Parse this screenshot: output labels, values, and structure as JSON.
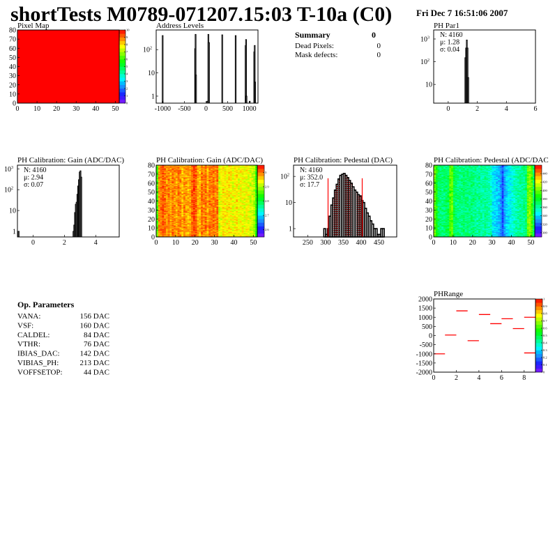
{
  "header": {
    "title": "shortTests M0789-071207.15:03 T-10a (C0)",
    "date": "Fri Dec  7 16:51:06 2007"
  },
  "summary": {
    "title": "Summary",
    "total": "0",
    "rows": [
      {
        "label": "Dead Pixels:",
        "value": "0"
      },
      {
        "label": "Mask defects:",
        "value": "0"
      }
    ]
  },
  "op_params": {
    "title": "Op. Parameters",
    "rows": [
      {
        "label": "VANA:",
        "value": "156 DAC"
      },
      {
        "label": "VSF:",
        "value": "160 DAC"
      },
      {
        "label": "CALDEL:",
        "value": "84 DAC"
      },
      {
        "label": "VTHR:",
        "value": "76 DAC"
      },
      {
        "label": "IBIAS_DAC:",
        "value": "142 DAC"
      },
      {
        "label": "VIBIAS_PH:",
        "value": "213 DAC"
      },
      {
        "label": "VOFFSETOP:",
        "value": "44 DAC"
      }
    ]
  },
  "colors": {
    "hist_line": "#000000",
    "fit": "#ff0000",
    "map_uniform": "#ff0000"
  },
  "chart_data": [
    {
      "id": "pixel-map",
      "type": "heatmap",
      "title": "Pixel Map",
      "xlim": [
        0,
        52
      ],
      "ylim": [
        0,
        80
      ],
      "zlim": [
        0,
        10
      ],
      "xticks": [
        "0",
        "10",
        "20",
        "30",
        "40",
        "50"
      ],
      "yticks": [
        "0",
        "10",
        "20",
        "30",
        "40",
        "50",
        "60",
        "70",
        "80"
      ],
      "zticks": [
        "0",
        "1",
        "2",
        "3",
        "4",
        "5",
        "6",
        "7",
        "8",
        "9",
        "10"
      ],
      "uniform_value": 10
    },
    {
      "id": "address-levels",
      "type": "bar",
      "title": "Address Levels",
      "xlim": [
        -1150,
        1200
      ],
      "ylim": [
        0.5,
        700
      ],
      "log_y": true,
      "xticks": [
        "-1000",
        "-500",
        "0",
        "500",
        "1000"
      ],
      "yticks": [
        "1",
        "10",
        "10^2"
      ],
      "bins": [
        [
          -1010,
          400
        ],
        [
          -260,
          110
        ],
        [
          -250,
          450
        ],
        [
          -240,
          8
        ],
        [
          20,
          0.6
        ],
        [
          45,
          450
        ],
        [
          60,
          200
        ],
        [
          365,
          430
        ],
        [
          675,
          400
        ],
        [
          905,
          150
        ],
        [
          915,
          270
        ],
        [
          925,
          1
        ],
        [
          1000,
          0.6
        ],
        [
          1105,
          80
        ],
        [
          1115,
          150
        ],
        [
          1125,
          4
        ]
      ]
    },
    {
      "id": "ph-par1",
      "type": "bar",
      "title": "PH Par1",
      "xlim": [
        -1,
        6
      ],
      "ylim": [
        1.5,
        2500
      ],
      "log_y": true,
      "xticks": [
        "0",
        "2",
        "4",
        "6"
      ],
      "yticks": [
        "10",
        "10^2",
        "10^3"
      ],
      "stats": [
        {
          "label": "N: 4160"
        },
        {
          "label": "μ: 1.28"
        },
        {
          "label": "σ: 0.04"
        }
      ],
      "bin_width": 0.05,
      "bins": [
        [
          1.15,
          150
        ],
        [
          1.2,
          400
        ],
        [
          1.25,
          900
        ],
        [
          1.3,
          400
        ],
        [
          1.35,
          20
        ]
      ]
    },
    {
      "id": "gain-hist",
      "type": "bar",
      "title": "PH Calibration: Gain (ADC/DAC)",
      "xlim": [
        -1,
        5.5
      ],
      "ylim": [
        0.54,
        1500
      ],
      "log_y": true,
      "xticks": [
        "0",
        "2",
        "4"
      ],
      "yticks": [
        "1",
        "10",
        "10^2",
        "10^3"
      ],
      "stats": [
        {
          "label": "N: 4160"
        },
        {
          "label": "μ: 2.94"
        },
        {
          "label": "σ: 0.07"
        }
      ],
      "bin_width": 0.05,
      "bins": [
        [
          -0.95,
          1
        ],
        [
          2.55,
          1
        ],
        [
          2.6,
          2
        ],
        [
          2.65,
          8
        ],
        [
          2.7,
          20
        ],
        [
          2.75,
          25
        ],
        [
          2.8,
          60
        ],
        [
          2.85,
          150
        ],
        [
          2.9,
          300
        ],
        [
          2.95,
          700
        ],
        [
          3.0,
          800
        ],
        [
          3.05,
          400
        ]
      ]
    },
    {
      "id": "gain-map",
      "type": "heatmap",
      "title": "PH Calibration: Gain (ADC/DAC)",
      "xlim": [
        0,
        52
      ],
      "ylim": [
        0,
        80
      ],
      "zlim": [
        2.55,
        3.05
      ],
      "xticks": [
        "0",
        "10",
        "20",
        "30",
        "40",
        "50"
      ],
      "yticks": [
        "0",
        "10",
        "20",
        "30",
        "40",
        "50",
        "60",
        "70",
        "80"
      ],
      "zticks": [
        "2.6",
        "2.7",
        "2.8",
        "2.9",
        "3"
      ],
      "column_means": [
        2.86,
        2.99,
        3.0,
        3.01,
        3.0,
        2.99,
        3.0,
        2.98,
        3.0,
        2.99,
        2.98,
        3.0,
        2.99,
        2.97,
        2.99,
        2.98,
        2.97,
        2.98,
        3.01,
        3.02,
        3.01,
        2.98,
        2.97,
        3.0,
        2.99,
        3.0,
        2.97,
        3.0,
        2.99,
        3.0,
        2.99,
        3.0,
        2.92,
        2.93,
        2.95,
        2.94,
        2.94,
        2.95,
        2.94,
        2.93,
        2.94,
        2.95,
        2.93,
        2.94,
        2.94,
        2.93,
        2.94,
        2.93,
        2.92,
        2.92,
        2.9,
        2.84
      ]
    },
    {
      "id": "pedestal-hist",
      "type": "bar",
      "title": "PH Calibration: Pedestal (DAC)",
      "xlim": [
        210,
        500
      ],
      "ylim": [
        0.48,
        270
      ],
      "log_y": true,
      "xticks": [
        "250",
        "300",
        "350",
        "400",
        "450"
      ],
      "yticks": [
        "1",
        "10",
        "10^2"
      ],
      "stats": [
        {
          "label": "N: 4160",
          "color": "#000000"
        },
        {
          "label": "μ: 352.0",
          "color": "#ff0000"
        },
        {
          "label": "σ: 17.7",
          "color": "#ff0000"
        }
      ],
      "fit_range": [
        307,
        403
      ],
      "bin_width": 5,
      "bins": [
        [
          295,
          1
        ],
        [
          300,
          0.6
        ],
        [
          305,
          1
        ],
        [
          310,
          3
        ],
        [
          315,
          8
        ],
        [
          320,
          15
        ],
        [
          325,
          30
        ],
        [
          330,
          50
        ],
        [
          335,
          80
        ],
        [
          340,
          110
        ],
        [
          345,
          120
        ],
        [
          350,
          130
        ],
        [
          355,
          110
        ],
        [
          360,
          90
        ],
        [
          365,
          70
        ],
        [
          370,
          55
        ],
        [
          375,
          40
        ],
        [
          380,
          30
        ],
        [
          385,
          25
        ],
        [
          390,
          20
        ],
        [
          395,
          18
        ],
        [
          400,
          12
        ],
        [
          405,
          10
        ],
        [
          410,
          6
        ],
        [
          415,
          4
        ],
        [
          420,
          3
        ],
        [
          425,
          2
        ],
        [
          430,
          1.5
        ],
        [
          435,
          1
        ],
        [
          440,
          1
        ],
        [
          445,
          0.6
        ],
        [
          450,
          0.6
        ],
        [
          455,
          1
        ],
        [
          460,
          1
        ]
      ]
    },
    {
      "id": "pedestal-map",
      "type": "heatmap",
      "title": "PH Calibration: Pedestal (ADC/DAC",
      "xlim": [
        0,
        52
      ],
      "ylim": [
        0,
        80
      ],
      "zlim": [
        290,
        460
      ],
      "xticks": [
        "0",
        "10",
        "20",
        "30",
        "40",
        "50"
      ],
      "yticks": [
        "0",
        "10",
        "20",
        "30",
        "40",
        "50",
        "60",
        "70",
        "80"
      ],
      "zticks": [
        "300",
        "320",
        "340",
        "360",
        "380",
        "400",
        "420",
        "440"
      ],
      "column_means": [
        400,
        385,
        370,
        368,
        366,
        368,
        370,
        372,
        395,
        398,
        372,
        368,
        366,
        365,
        366,
        368,
        366,
        365,
        364,
        366,
        365,
        364,
        362,
        364,
        362,
        360,
        362,
        360,
        358,
        356,
        345,
        342,
        340,
        338,
        330,
        318,
        332,
        340,
        345,
        348,
        352,
        356,
        358,
        360,
        362,
        362,
        364,
        366,
        400,
        405,
        395,
        370
      ]
    },
    {
      "id": "ph-range",
      "type": "heatmap",
      "title": "PHRange",
      "xlim": [
        0,
        9
      ],
      "ylim": [
        -2000,
        2000
      ],
      "zlim": [
        0,
        1
      ],
      "xticks": [
        "0",
        "2",
        "4",
        "6",
        "8"
      ],
      "yticks": [
        "-2000",
        "-1500",
        "-1000",
        "-500",
        "0",
        "500",
        "1000",
        "1500",
        "2000"
      ],
      "zticks": [
        "0",
        "0.1",
        "0.2",
        "0.3",
        "0.4",
        "0.5",
        "0.6",
        "0.7",
        "0.8",
        "0.9",
        "1"
      ],
      "segments": [
        [
          0,
          1,
          -1000
        ],
        [
          1,
          2,
          30
        ],
        [
          2,
          3,
          1350
        ],
        [
          3,
          4,
          -280
        ],
        [
          4,
          5,
          1150
        ],
        [
          5,
          6,
          650
        ],
        [
          6,
          7,
          920
        ],
        [
          7,
          8,
          380
        ],
        [
          8,
          9,
          1000
        ],
        [
          8,
          9,
          -950
        ]
      ]
    }
  ]
}
